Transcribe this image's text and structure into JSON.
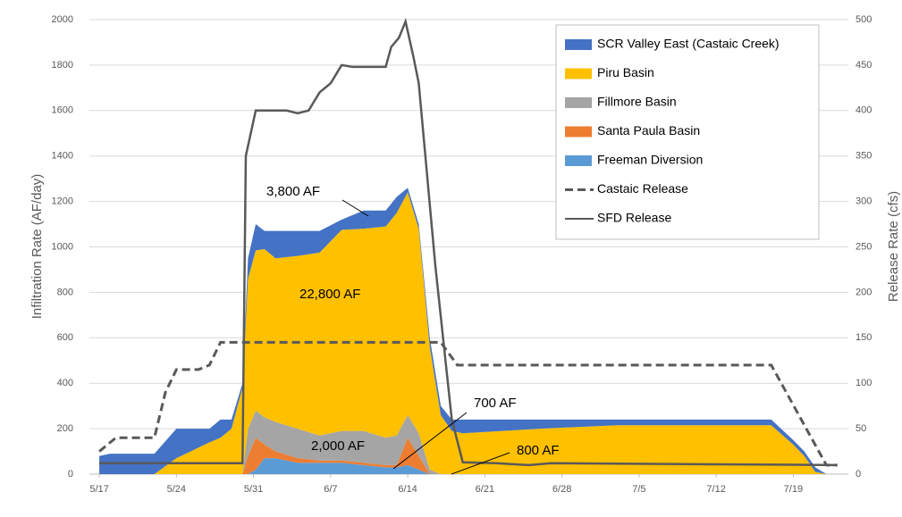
{
  "chart_data": {
    "type": "area",
    "y_label": "Infiltration Rate (AF/day)",
    "y2_label": "Release Rate (cfs)",
    "xlim": [
      -0.9,
      68
    ],
    "xticks": [
      {
        "value": 0,
        "label": "5/17"
      },
      {
        "value": 7,
        "label": "5/24"
      },
      {
        "value": 14,
        "label": "5/31"
      },
      {
        "value": 21,
        "label": "6/7"
      },
      {
        "value": 28,
        "label": "6/14"
      },
      {
        "value": 35,
        "label": "6/21"
      },
      {
        "value": 42,
        "label": "6/28"
      },
      {
        "value": 49,
        "label": "7/5"
      },
      {
        "value": 56,
        "label": "7/12"
      },
      {
        "value": 63,
        "label": "7/19"
      }
    ],
    "ylim": [
      0,
      2000
    ],
    "yticks": [
      0,
      200,
      400,
      600,
      800,
      1000,
      1200,
      1400,
      1600,
      1800,
      2000
    ],
    "y2lim": [
      0,
      500
    ],
    "y2ticks": [
      0,
      50,
      100,
      150,
      200,
      250,
      300,
      350,
      400,
      450,
      500
    ],
    "grid": true,
    "legend": "upper right",
    "x": [
      0,
      1,
      5,
      7,
      10,
      11,
      12,
      13,
      13.5,
      14.2,
      15,
      16,
      18,
      20,
      22,
      24,
      26,
      27,
      28,
      29,
      30,
      31,
      32,
      33,
      40,
      47,
      61,
      63,
      64,
      65,
      66
    ],
    "series": [
      {
        "name": "Freeman Diversion",
        "color": "#5b9bd5",
        "values": [
          0,
          0,
          0,
          0,
          0,
          0,
          0,
          0,
          0,
          20,
          70,
          70,
          50,
          50,
          50,
          40,
          30,
          30,
          40,
          20,
          0,
          0,
          0,
          0,
          0,
          0,
          0,
          0,
          0,
          0,
          0
        ]
      },
      {
        "name": "Santa Paula Basin",
        "color": "#ed7d31",
        "values": [
          0,
          0,
          0,
          0,
          0,
          0,
          0,
          0,
          80,
          140,
          60,
          30,
          20,
          10,
          10,
          10,
          10,
          10,
          120,
          60,
          0,
          0,
          0,
          0,
          0,
          0,
          0,
          0,
          0,
          0,
          0
        ]
      },
      {
        "name": "Fillmore Basin",
        "color": "#a5a5a5",
        "values": [
          0,
          0,
          0,
          0,
          0,
          0,
          0,
          0,
          120,
          120,
          120,
          130,
          130,
          110,
          130,
          140,
          120,
          130,
          100,
          100,
          20,
          0,
          0,
          0,
          0,
          0,
          0,
          0,
          0,
          0,
          0
        ]
      },
      {
        "name": "Piru Basin",
        "color": "#ffc000",
        "values": [
          0,
          0,
          0,
          70,
          140,
          160,
          200,
          380,
          660,
          705,
          740,
          720,
          760,
          805,
          885,
          890,
          930,
          980,
          980,
          900,
          540,
          260,
          190,
          180,
          200,
          215,
          215,
          130,
          80,
          10,
          0
        ]
      },
      {
        "name": "SCR Valley East (Castaic Creek)",
        "color": "#4472c4",
        "values": [
          80,
          90,
          90,
          130,
          60,
          80,
          40,
          20,
          90,
          115,
          80,
          120,
          110,
          95,
          45,
          80,
          70,
          70,
          20,
          20,
          40,
          40,
          50,
          60,
          40,
          25,
          25,
          20,
          20,
          20,
          0
        ]
      },
      {
        "name": "Castaic Release",
        "type": "line",
        "axis": "y2",
        "dash": true,
        "color": "#595959",
        "x": [
          0,
          1.5,
          5,
          6,
          7,
          9,
          10,
          11,
          31,
          32.5,
          61,
          66,
          67
        ],
        "values": [
          25,
          40,
          40,
          90,
          115,
          115,
          120,
          145,
          145,
          120,
          120,
          10,
          10
        ]
      },
      {
        "name": "SFD Release",
        "type": "line",
        "axis": "y2",
        "dash": false,
        "color": "#595959",
        "x": [
          0,
          13,
          13.3,
          14.2,
          17,
          18,
          19,
          20,
          21,
          22,
          23,
          26,
          26.5,
          27.2,
          27.8,
          28.5,
          29,
          30.5,
          32,
          33,
          36,
          39,
          41,
          67
        ],
        "values": [
          12,
          12,
          350,
          400,
          400,
          397,
          400,
          420,
          430,
          450,
          448,
          448,
          470,
          480,
          498,
          460,
          430,
          230,
          60,
          13,
          12,
          10,
          12,
          10
        ]
      }
    ],
    "legend_order": [
      4,
      3,
      2,
      1,
      0,
      5,
      6
    ],
    "annotations": [
      "3,800 AF",
      "22,800 AF",
      "2,000 AF",
      "700 AF",
      "800 AF"
    ]
  }
}
